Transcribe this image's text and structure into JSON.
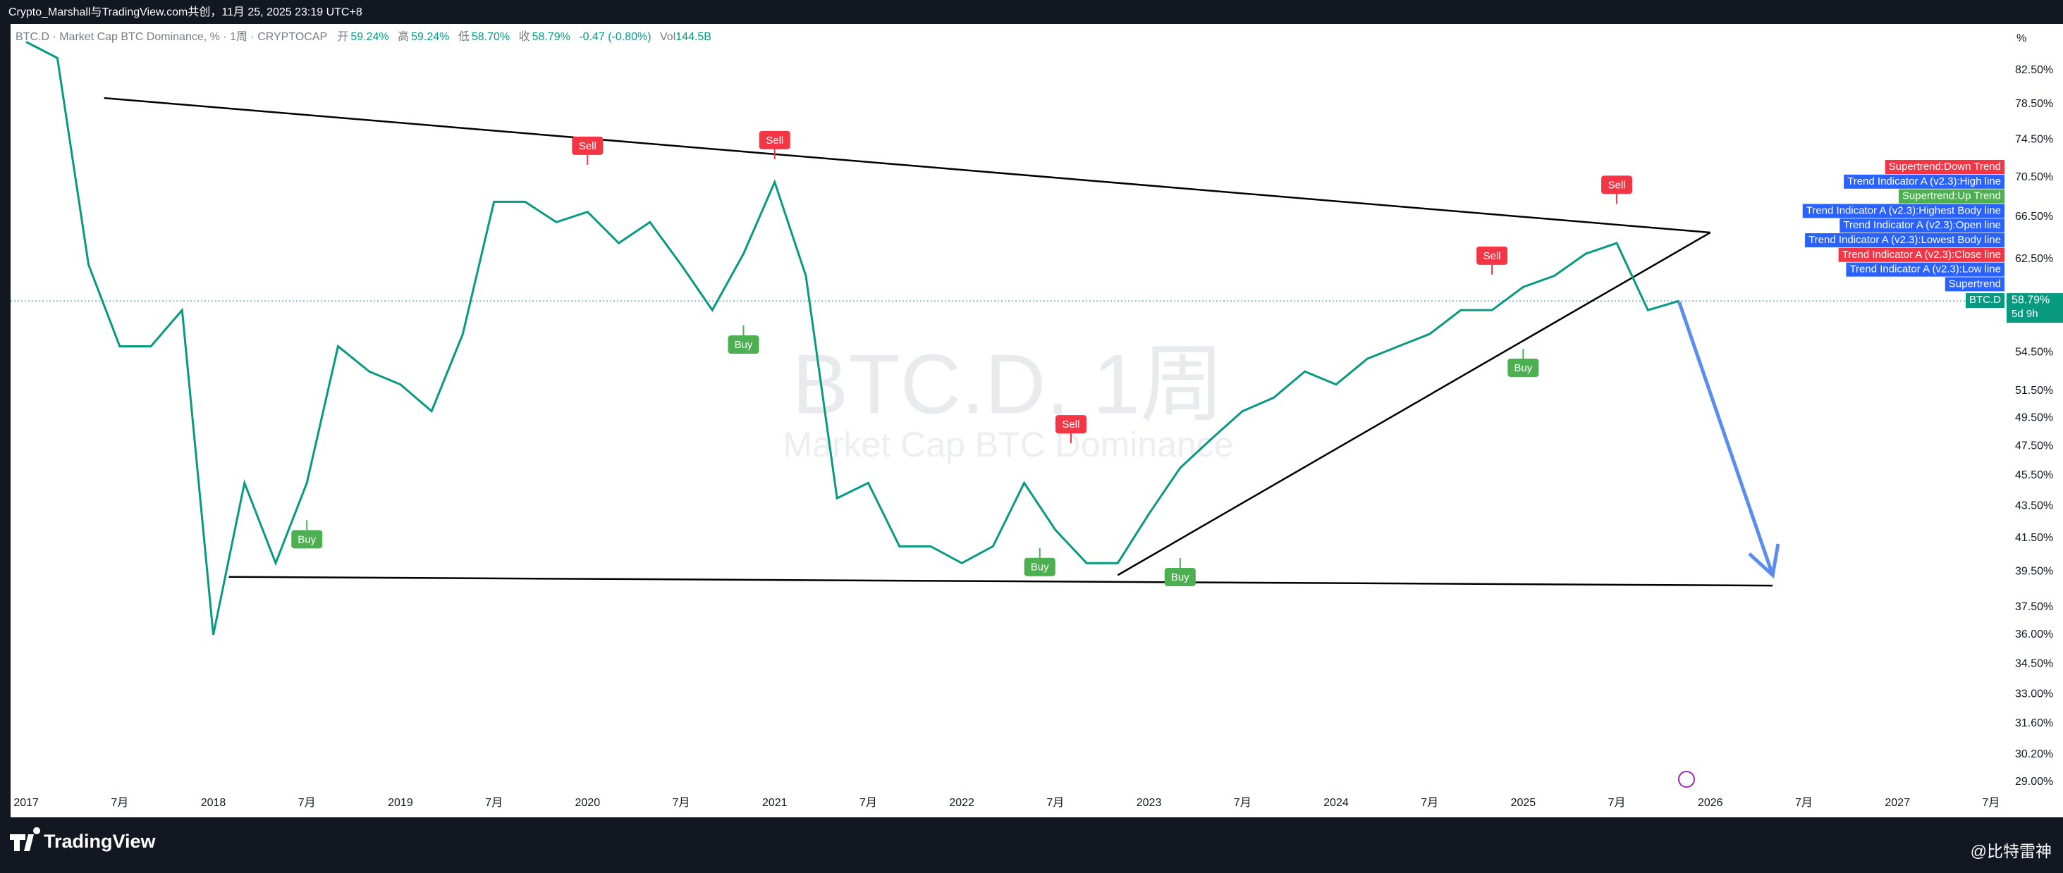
{
  "header": "Crypto_Marshall与TradingView.com共创，11月 25, 2025 23:19 UTC+8",
  "chart_data": {
    "type": "line",
    "symbol_line": "BTC.D · Market Cap BTC Dominance, % · 1周 · CRYPTOCAP",
    "ohlc": [
      {
        "label": "开",
        "value": "59.24%"
      },
      {
        "label": "高",
        "value": "59.24%"
      },
      {
        "label": "低",
        "value": "58.70%"
      },
      {
        "label": "收",
        "value": "58.79%"
      }
    ],
    "change": "-0.47 (-0.80%)",
    "volume_label": "Vol",
    "volume": "144.5B",
    "watermark": "BTC.D, 1周",
    "watermark_sub": "Market Cap BTC Dominance",
    "axis_unit": "%",
    "log_scale": true,
    "grid": false,
    "x": [
      "2017-01",
      "2017-03",
      "2017-05",
      "2017-07",
      "2017-09",
      "2017-11",
      "2018-01",
      "2018-03",
      "2018-05",
      "2018-07",
      "2018-09",
      "2018-11",
      "2019-01",
      "2019-03",
      "2019-05",
      "2019-07",
      "2019-09",
      "2019-11",
      "2020-01",
      "2020-03",
      "2020-05",
      "2020-07",
      "2020-09",
      "2020-11",
      "2021-01",
      "2021-03",
      "2021-05",
      "2021-07",
      "2021-09",
      "2021-11",
      "2022-01",
      "2022-03",
      "2022-05",
      "2022-07",
      "2022-09",
      "2022-11",
      "2023-01",
      "2023-03",
      "2023-05",
      "2023-07",
      "2023-09",
      "2023-11",
      "2024-01",
      "2024-03",
      "2024-05",
      "2024-07",
      "2024-09",
      "2024-11",
      "2025-01",
      "2025-03",
      "2025-05",
      "2025-07",
      "2025-09",
      "2025-11"
    ],
    "series": [
      {
        "name": "BTC.D",
        "color": "#089981",
        "values": [
          86,
          84,
          62,
          55,
          55,
          58,
          36,
          45,
          40,
          45,
          55,
          53,
          52,
          50,
          56,
          68,
          68,
          66,
          67,
          64,
          66,
          62,
          58,
          63,
          70,
          61,
          44,
          45,
          41,
          41,
          40,
          41,
          45,
          42,
          40,
          40,
          43,
          46,
          48,
          50,
          51,
          53,
          52,
          54,
          55,
          56,
          58,
          58,
          60,
          61,
          63,
          64,
          58,
          58.79
        ]
      }
    ],
    "last_price": {
      "name": "BTC.D",
      "value": 58.79,
      "label": "58.79%",
      "countdown": "5d 9h"
    },
    "xlim": [
      "2016-12",
      "2027-08"
    ],
    "xticks": [
      {
        "value": "2017-01",
        "label": "2017"
      },
      {
        "value": "2017-07",
        "label": "7月"
      },
      {
        "value": "2018-01",
        "label": "2018"
      },
      {
        "value": "2018-07",
        "label": "7月"
      },
      {
        "value": "2019-01",
        "label": "2019"
      },
      {
        "value": "2019-07",
        "label": "7月"
      },
      {
        "value": "2020-01",
        "label": "2020"
      },
      {
        "value": "2020-07",
        "label": "7月"
      },
      {
        "value": "2021-01",
        "label": "2021"
      },
      {
        "value": "2021-07",
        "label": "7月"
      },
      {
        "value": "2022-01",
        "label": "2022"
      },
      {
        "value": "2022-07",
        "label": "7月"
      },
      {
        "value": "2023-01",
        "label": "2023"
      },
      {
        "value": "2023-07",
        "label": "7月"
      },
      {
        "value": "2024-01",
        "label": "2024"
      },
      {
        "value": "2024-07",
        "label": "7月"
      },
      {
        "value": "2025-01",
        "label": "2025"
      },
      {
        "value": "2025-07",
        "label": "7月"
      },
      {
        "value": "2026-01",
        "label": "2026"
      },
      {
        "value": "2026-07",
        "label": "7月"
      },
      {
        "value": "2027-01",
        "label": "2027"
      },
      {
        "value": "2027-07",
        "label": "7月"
      }
    ],
    "ylim": [
      28.7,
      88.3
    ],
    "yticks": [
      {
        "value": 82.5,
        "label": "82.50%"
      },
      {
        "value": 78.5,
        "label": "78.50%"
      },
      {
        "value": 74.5,
        "label": "74.50%"
      },
      {
        "value": 70.5,
        "label": "70.50%"
      },
      {
        "value": 66.5,
        "label": "66.50%"
      },
      {
        "value": 62.5,
        "label": "62.50%"
      },
      {
        "value": 54.5,
        "label": "54.50%"
      },
      {
        "value": 51.5,
        "label": "51.50%"
      },
      {
        "value": 49.5,
        "label": "49.50%"
      },
      {
        "value": 47.5,
        "label": "47.50%"
      },
      {
        "value": 45.5,
        "label": "45.50%"
      },
      {
        "value": 43.5,
        "label": "43.50%"
      },
      {
        "value": 41.5,
        "label": "41.50%"
      },
      {
        "value": 39.5,
        "label": "39.50%"
      },
      {
        "value": 37.5,
        "label": "37.50%"
      },
      {
        "value": 36,
        "label": "36.00%"
      },
      {
        "value": 34.5,
        "label": "34.50%"
      },
      {
        "value": 33,
        "label": "33.00%"
      },
      {
        "value": 31.6,
        "label": "31.60%"
      },
      {
        "value": 30.2,
        "label": "30.20%"
      },
      {
        "value": 29,
        "label": "29.00%"
      }
    ],
    "trendlines": [
      {
        "color": "#000000",
        "x": [
          "2017-06",
          "2026-01"
        ],
        "values": [
          79.2,
          65.0
        ]
      },
      {
        "color": "#000000",
        "x": [
          "2018-02",
          "2026-05"
        ],
        "values": [
          39.2,
          38.7
        ]
      },
      {
        "color": "#000000",
        "x": [
          "2022-11",
          "2026-01"
        ],
        "values": [
          39.3,
          65.0
        ]
      }
    ],
    "arrow": {
      "color": "#5b8def",
      "x": [
        "2025-11",
        "2026-05"
      ],
      "values": [
        58.7,
        39.3
      ]
    },
    "signals": [
      {
        "label": "Buy",
        "x": "2018-07",
        "value": 42.6
      },
      {
        "label": "Sell",
        "x": "2020-01",
        "value": 71.8
      },
      {
        "label": "Buy",
        "x": "2020-11",
        "value": 56.7
      },
      {
        "label": "Sell",
        "x": "2021-01",
        "value": 72.4
      },
      {
        "label": "Buy",
        "x": "2022-06",
        "value": 40.9
      },
      {
        "label": "Sell",
        "x": "2022-08",
        "value": 47.7
      },
      {
        "label": "Buy",
        "x": "2023-03",
        "value": 40.3
      },
      {
        "label": "Sell",
        "x": "2024-11",
        "value": 61.1
      },
      {
        "label": "Buy",
        "x": "2025-01",
        "value": 54.8
      },
      {
        "label": "Sell",
        "x": "2025-07",
        "value": 67.8
      }
    ],
    "right_labels": [
      {
        "text": "Supertrend:Down Trend",
        "color": "#f23645"
      },
      {
        "text": "Trend Indicator A (v2.3):High line",
        "color": "#2962ff"
      },
      {
        "text": "Supertrend:Up Trend",
        "color": "#4caf50"
      },
      {
        "text": "Trend Indicator A (v2.3):Highest Body line",
        "color": "#2962ff"
      },
      {
        "text": "Trend Indicator A (v2.3):Open line",
        "color": "#2962ff"
      },
      {
        "text": "Trend Indicator A (v2.3):Lowest Body line",
        "color": "#2962ff"
      },
      {
        "text": "Trend Indicator A (v2.3):Close line",
        "color": "#f23645"
      },
      {
        "text": "Trend Indicator A (v2.3):Low line",
        "color": "#2962ff"
      },
      {
        "text": "Supertrend",
        "color": "#2962ff"
      }
    ]
  },
  "footer": {
    "brand": "TradingView",
    "credit": "@比特雷神"
  }
}
